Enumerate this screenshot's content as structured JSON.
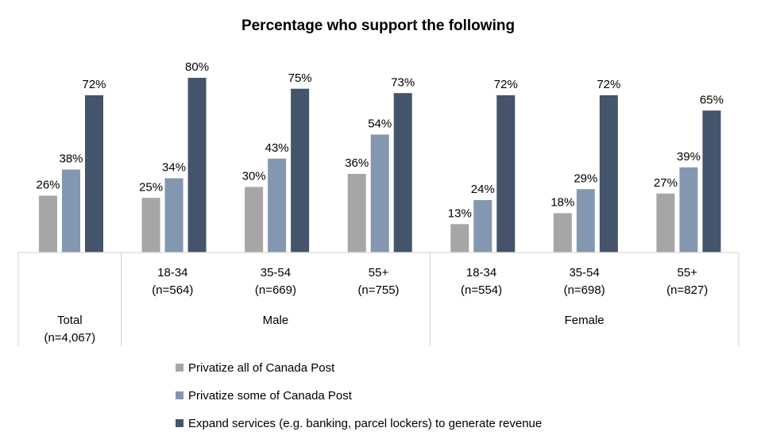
{
  "chart_data": {
    "type": "bar",
    "title": "Percentage who support the following",
    "groups": [
      {
        "label": "",
        "subgroups": [
          {
            "label_line1": "Total",
            "label_line2": "(n=4,067)"
          }
        ]
      },
      {
        "label": "Male",
        "subgroups": [
          {
            "label_line1": "18-34",
            "label_line2": "(n=564)"
          },
          {
            "label_line1": "35-54",
            "label_line2": "(n=669)"
          },
          {
            "label_line1": "55+",
            "label_line2": "(n=755)"
          }
        ]
      },
      {
        "label": "Female",
        "subgroups": [
          {
            "label_line1": "18-34",
            "label_line2": "(n=554)"
          },
          {
            "label_line1": "35-54",
            "label_line2": "(n=698)"
          },
          {
            "label_line1": "55+",
            "label_line2": "(n=827)"
          }
        ]
      }
    ],
    "series": [
      {
        "name": "Privatize all of Canada Post",
        "color": "#a6a6a6",
        "values": [
          26,
          25,
          30,
          36,
          13,
          18,
          27
        ],
        "labels": [
          "26%",
          "25%",
          "30%",
          "36%",
          "13%",
          "18%",
          "27%"
        ]
      },
      {
        "name": "Privatize some of Canada Post",
        "color": "#8497b0",
        "values": [
          38,
          34,
          43,
          54,
          24,
          29,
          39
        ],
        "labels": [
          "38%",
          "34%",
          "43%",
          "54%",
          "24%",
          "29%",
          "39%"
        ]
      },
      {
        "name": "Expand services (e.g. banking, parcel lockers) to generate revenue",
        "color": "#44546a",
        "values": [
          72,
          80,
          75,
          73,
          72,
          72,
          65
        ],
        "labels": [
          "72%",
          "80%",
          "75%",
          "73%",
          "72%",
          "72%",
          "65%"
        ]
      }
    ],
    "ylim": [
      0,
      100
    ],
    "grid": false,
    "legend_position": "bottom"
  }
}
